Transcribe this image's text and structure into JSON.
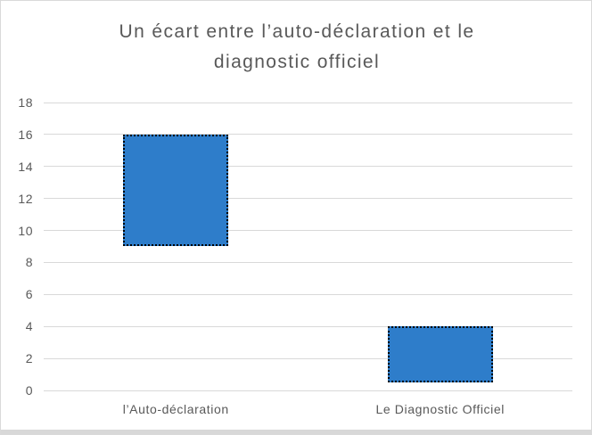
{
  "chart_data": {
    "type": "bar",
    "subtype": "floating-range-bar",
    "title": "Un écart entre l’auto-déclaration et le diagnostic officiel",
    "categories": [
      "l’Auto-déclaration",
      "Le Diagnostic Officiel"
    ],
    "series": [
      {
        "low": [
          9,
          0.5
        ],
        "high": [
          16,
          4
        ]
      }
    ],
    "ylim": [
      0,
      18
    ],
    "yticks": [
      0,
      2,
      4,
      6,
      8,
      10,
      12,
      14,
      16,
      18
    ],
    "grid": true,
    "legend": "none",
    "bar_fill_color": "#2e7dca",
    "bar_border_color": "#000000",
    "bar_border_style": "dotted-selection-marquee",
    "gridline_color": "#d9d9d9",
    "axis_text_color": "#595959",
    "title_color": "#595959"
  }
}
